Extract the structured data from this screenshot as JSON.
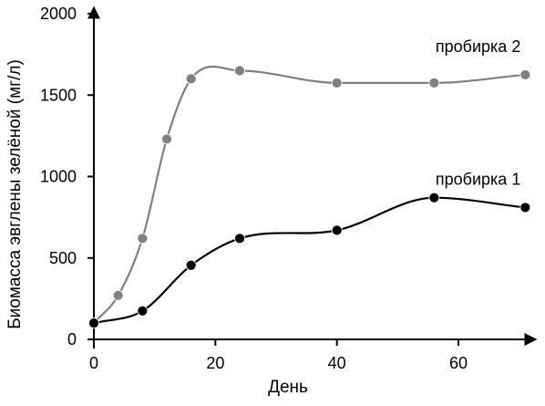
{
  "chart_data": {
    "type": "line",
    "xlabel": "День",
    "ylabel": "Биомасса эвглены зелёной (мг/л)",
    "xlim": [
      0,
      72
    ],
    "ylim": [
      0,
      2000
    ],
    "xticks": [
      "0",
      "20",
      "40",
      "60"
    ],
    "yticks": [
      "0",
      "500",
      "1000",
      "1500",
      "2000"
    ],
    "grid": false,
    "legend": "inline labels",
    "series": [
      {
        "name": "пробирка 2",
        "color": "#808080",
        "x": [
          0,
          4,
          8,
          12,
          16,
          24,
          40,
          56,
          71
        ],
        "y": [
          100,
          270,
          620,
          1230,
          1600,
          1650,
          1575,
          1575,
          1625
        ]
      },
      {
        "name": "пробирка 1",
        "color": "#000000",
        "x": [
          0,
          8,
          16,
          24,
          40,
          56,
          71
        ],
        "y": [
          100,
          175,
          455,
          620,
          670,
          870,
          810
        ]
      }
    ]
  }
}
